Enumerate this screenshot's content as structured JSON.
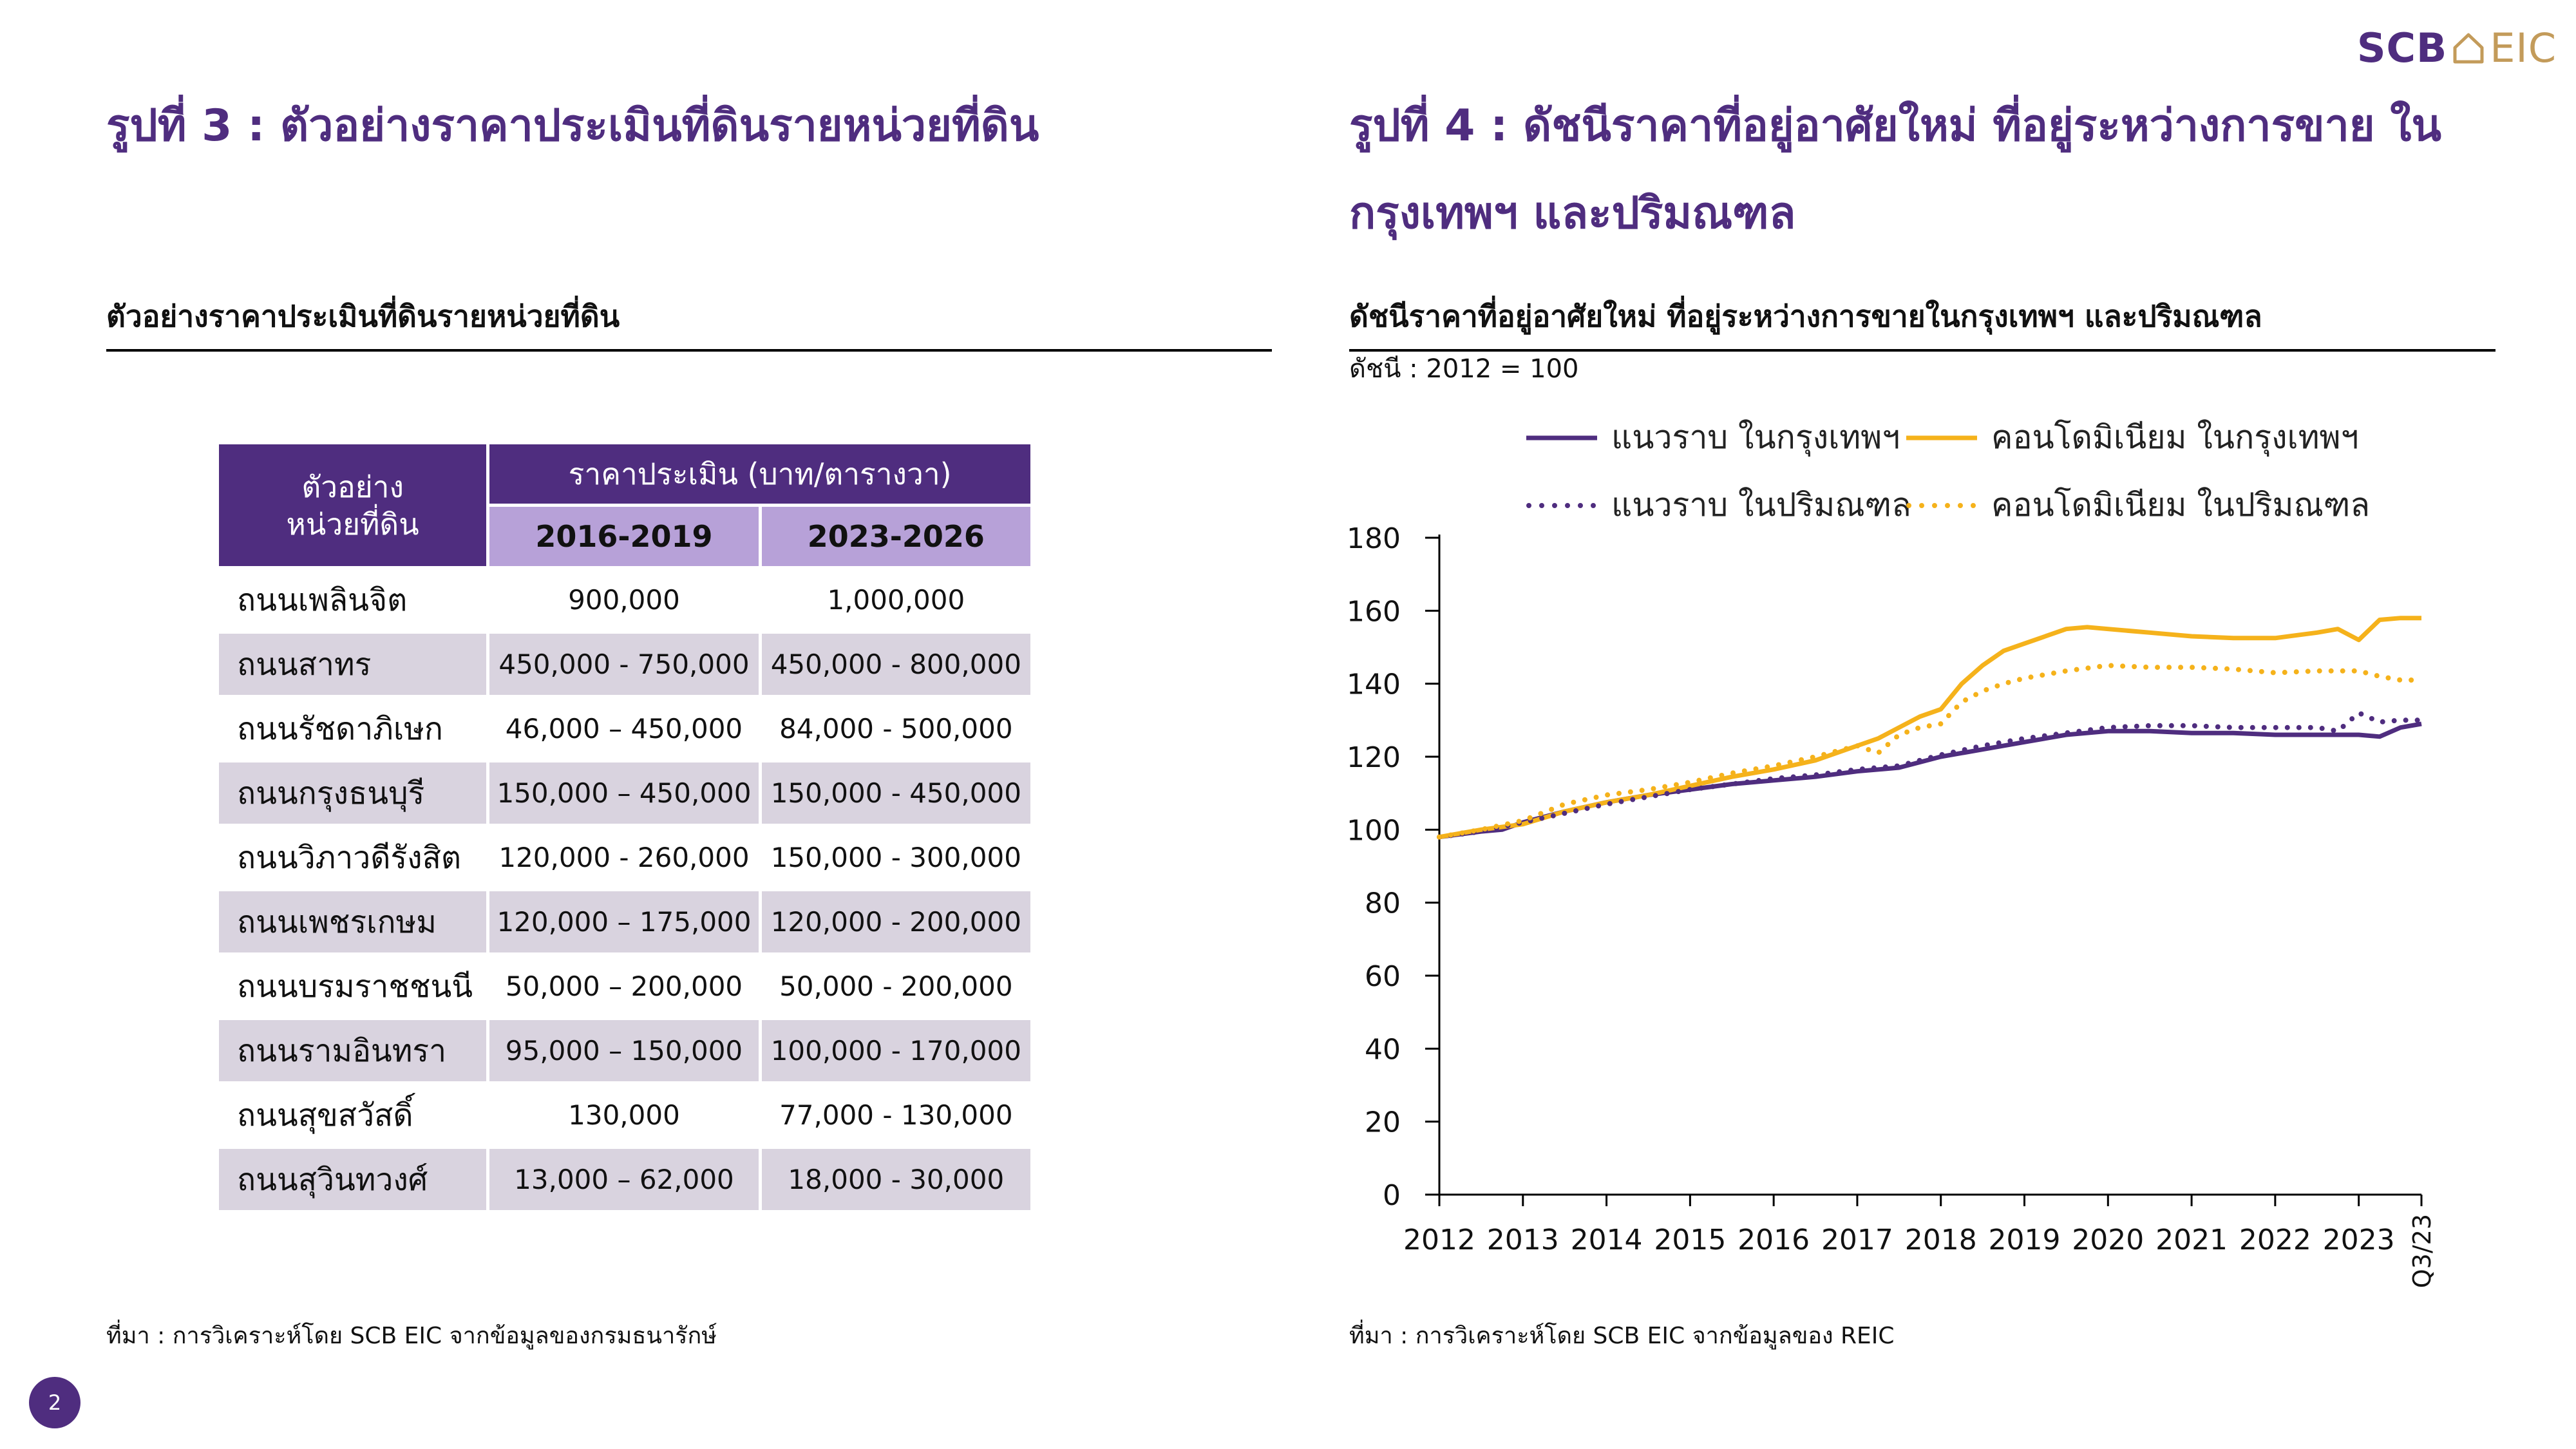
{
  "logo": {
    "left_text": "SCB",
    "right_text": "EIC"
  },
  "fig3": {
    "title": "รูปที่ 3 : ตัวอย่างราคาประเมินที่ดินรายหน่วยที่ดิน",
    "subtitle": "ตัวอย่างราคาประเมินที่ดินรายหน่วยที่ดิน",
    "table": {
      "col0_header": "ตัวอย่าง\nหน่วยที่ดิน",
      "group_header": "ราคาประเมิน (บาท/ตารางวา)",
      "period_headers": [
        "2016-2019",
        "2023-2026"
      ],
      "rows": [
        {
          "road": "ถนนเพลินจิต",
          "p1": "900,000",
          "p2": "1,000,000"
        },
        {
          "road": "ถนนสาทร",
          "p1": "450,000 - 750,000",
          "p2": "450,000 - 800,000"
        },
        {
          "road": "ถนนรัชดาภิเษก",
          "p1": "46,000 – 450,000",
          "p2": "84,000 - 500,000"
        },
        {
          "road": "ถนนกรุงธนบุรี",
          "p1": "150,000 – 450,000",
          "p2": "150,000 - 450,000"
        },
        {
          "road": "ถนนวิภาวดีรังสิต",
          "p1": "120,000 - 260,000",
          "p2": "150,000 - 300,000"
        },
        {
          "road": "ถนนเพชรเกษม",
          "p1": "120,000 – 175,000",
          "p2": "120,000 - 200,000"
        },
        {
          "road": "ถนนบรมราชชนนี",
          "p1": "50,000 – 200,000",
          "p2": "50,000 - 200,000"
        },
        {
          "road": "ถนนรามอินทรา",
          "p1": "95,000 – 150,000",
          "p2": "100,000 - 170,000"
        },
        {
          "road": "ถนนสุขสวัสดิ์",
          "p1": "130,000",
          "p2": "77,000 - 130,000"
        },
        {
          "road": "ถนนสุวินทวงศ์",
          "p1": "13,000 – 62,000",
          "p2": "18,000 - 30,000"
        }
      ]
    },
    "source": "ที่มา : การวิเคราะห์โดย SCB EIC จากข้อมูลของกรมธนารักษ์"
  },
  "fig4": {
    "title": "รูปที่ 4 : ดัชนีราคาที่อยู่อาศัยใหม่ ที่อยู่ระหว่างการขาย ในกรุงเทพฯ และปริมณฑล",
    "subtitle": "ดัชนีราคาที่อยู่อาศัยใหม่ ที่อยู่ระหว่างการขายในกรุงเทพฯ และปริมณฑล",
    "index_note": "ดัชนี : 2012 = 100",
    "source": "ที่มา : การวิเคราะห์โดย SCB EIC จากข้อมูลของ REIC"
  },
  "page_number": "2",
  "colors": {
    "purple": "#4f2d7f",
    "gold": "#f5b21b",
    "lavender": "#b7a1d8",
    "row_shade": "#d9d3df"
  },
  "chart_data": {
    "type": "line",
    "ylim": [
      0,
      180
    ],
    "y_ticks": [
      0,
      20,
      40,
      60,
      80,
      100,
      120,
      140,
      160,
      180
    ],
    "x_tick_labels": [
      "2012",
      "2013",
      "2014",
      "2015",
      "2016",
      "2017",
      "2018",
      "2019",
      "2020",
      "2021",
      "2022",
      "2023",
      "Q3/23"
    ],
    "x_start": 2012,
    "x_end": 2023.75,
    "grid": false,
    "legend_position": "top",
    "series": [
      {
        "name": "แนวราบ ในกรุงเทพฯ",
        "color": "#4f2d7f",
        "dash": "solid",
        "x": [
          2012,
          2012.5,
          2012.75,
          2013,
          2013.5,
          2014,
          2014.5,
          2015,
          2015.5,
          2016,
          2016.5,
          2017,
          2017.5,
          2018,
          2018.5,
          2019,
          2019.5,
          2020,
          2020.5,
          2021,
          2021.5,
          2022,
          2022.5,
          2023,
          2023.25,
          2023.5,
          2023.75
        ],
        "y": [
          98,
          99.5,
          100,
          102,
          105,
          107.5,
          109.5,
          111,
          112.5,
          113.5,
          114.5,
          116,
          117,
          120,
          122,
          124,
          126,
          127,
          127,
          126.5,
          126.5,
          126,
          126,
          126,
          125.5,
          128,
          129
        ]
      },
      {
        "name": "คอนโดมิเนียม ในกรุงเทพฯ",
        "color": "#f5b21b",
        "dash": "solid",
        "x": [
          2012,
          2012.5,
          2013,
          2013.5,
          2014,
          2014.5,
          2015,
          2015.5,
          2016,
          2016.5,
          2017,
          2017.25,
          2017.5,
          2017.75,
          2018,
          2018.25,
          2018.5,
          2018.75,
          2019,
          2019.25,
          2019.5,
          2019.75,
          2020,
          2020.5,
          2021,
          2021.5,
          2022,
          2022.5,
          2022.75,
          2023,
          2023.25,
          2023.5,
          2023.75
        ],
        "y": [
          98,
          100,
          101.5,
          105,
          107.5,
          109.5,
          112,
          114.5,
          116.5,
          119,
          123,
          125,
          128,
          131,
          133,
          140,
          145,
          149,
          151,
          153,
          155,
          155.5,
          155,
          154,
          153,
          152.5,
          152.5,
          154,
          155,
          152,
          157.5,
          158,
          158
        ]
      },
      {
        "name": "แนวราบ ในปริมณฑล",
        "color": "#4f2d7f",
        "dash": "dotted",
        "x": [
          2012,
          2012.5,
          2013,
          2013.5,
          2014,
          2014.5,
          2015,
          2015.5,
          2016,
          2016.5,
          2017,
          2017.5,
          2018,
          2018.5,
          2019,
          2019.5,
          2020,
          2020.5,
          2021,
          2021.5,
          2022,
          2022.5,
          2022.75,
          2023,
          2023.25,
          2023.5,
          2023.75
        ],
        "y": [
          98,
          99.5,
          102,
          104.5,
          107,
          109,
          111,
          112.5,
          114,
          115,
          116.5,
          117.5,
          120.5,
          123,
          125,
          126.5,
          128,
          128.5,
          128.5,
          128,
          128,
          128,
          127,
          132,
          129.5,
          130,
          130
        ]
      },
      {
        "name": "คอนโดมิเนียม ในปริมณฑล",
        "color": "#f5b21b",
        "dash": "dotted",
        "x": [
          2012,
          2012.5,
          2013,
          2013.5,
          2014,
          2014.5,
          2015,
          2015.5,
          2016,
          2016.5,
          2017,
          2017.25,
          2017.5,
          2017.75,
          2018,
          2018.25,
          2018.5,
          2018.75,
          2019,
          2019.5,
          2020,
          2020.5,
          2021,
          2021.5,
          2022,
          2022.5,
          2023,
          2023.25,
          2023.5,
          2023.75
        ],
        "y": [
          98,
          100,
          102.5,
          107,
          109.5,
          111,
          113,
          115.5,
          117.5,
          120,
          123,
          121,
          126,
          128,
          129,
          135,
          138,
          140,
          141.5,
          143.5,
          145,
          144.5,
          144.5,
          144,
          143,
          143.5,
          143.5,
          142,
          141,
          141
        ]
      }
    ]
  }
}
